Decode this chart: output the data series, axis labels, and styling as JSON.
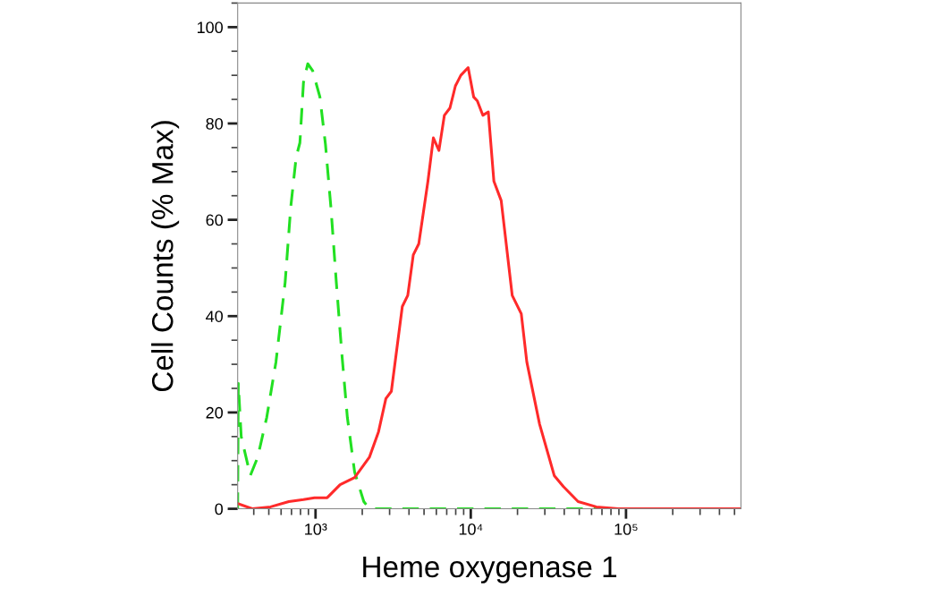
{
  "chart_data": {
    "type": "line",
    "xlabel": "Heme oxygenase 1",
    "ylabel": "Cell Counts (% Max)",
    "log": "x",
    "xlim": [
      315,
      550000
    ],
    "xticks": [
      {
        "value": 1000,
        "label": "10³"
      },
      {
        "value": 10000,
        "label": "10⁴"
      },
      {
        "value": 100000,
        "label": "10⁵"
      }
    ],
    "ylim": [
      0,
      105
    ],
    "yticks": [
      0,
      20,
      40,
      60,
      80,
      100
    ],
    "grid": false,
    "series": [
      {
        "color": "#22e022",
        "line_style": "dashed",
        "x": [
          315,
          318,
          332,
          380,
          424,
          485,
          556,
          637,
          692,
          750,
          793,
          836,
          891,
          957,
          1067,
          1159,
          1256,
          1361,
          1479,
          1603,
          1786,
          2046,
          2223,
          550000
        ],
        "values": [
          0,
          26,
          15,
          6.9,
          10.7,
          19,
          30.5,
          47,
          62.6,
          73,
          76,
          88.5,
          92.4,
          91,
          85.5,
          75.6,
          62.6,
          47,
          32,
          19,
          7.6,
          1.5,
          0,
          0
        ]
      },
      {
        "color": "#ff2a2a",
        "line_style": "solid",
        "x": [
          315,
          391,
          513,
          673,
          836,
          984,
          1189,
          1439,
          1786,
          2223,
          2546,
          2839,
          3079,
          3622,
          3927,
          4262,
          4624,
          5297,
          5741,
          6237,
          6761,
          7339,
          7962,
          8630,
          9620,
          10440,
          11020,
          11960,
          12970,
          14090,
          15700,
          18490,
          21150,
          22960,
          27740,
          34490,
          39520,
          49130,
          64420,
          89130,
          550000
        ],
        "values": [
          1.1,
          0,
          0.4,
          1.5,
          1.9,
          2.3,
          2.3,
          5,
          6.5,
          10.7,
          16,
          22.9,
          24.4,
          42,
          44.3,
          52.7,
          55,
          68,
          77,
          74.4,
          81.7,
          83.2,
          87.8,
          90,
          91.6,
          85.5,
          84.7,
          81.7,
          82.4,
          68,
          64,
          44.3,
          40.5,
          30.5,
          17.6,
          6.9,
          4.6,
          1.5,
          0.4,
          0,
          0
        ]
      }
    ]
  }
}
